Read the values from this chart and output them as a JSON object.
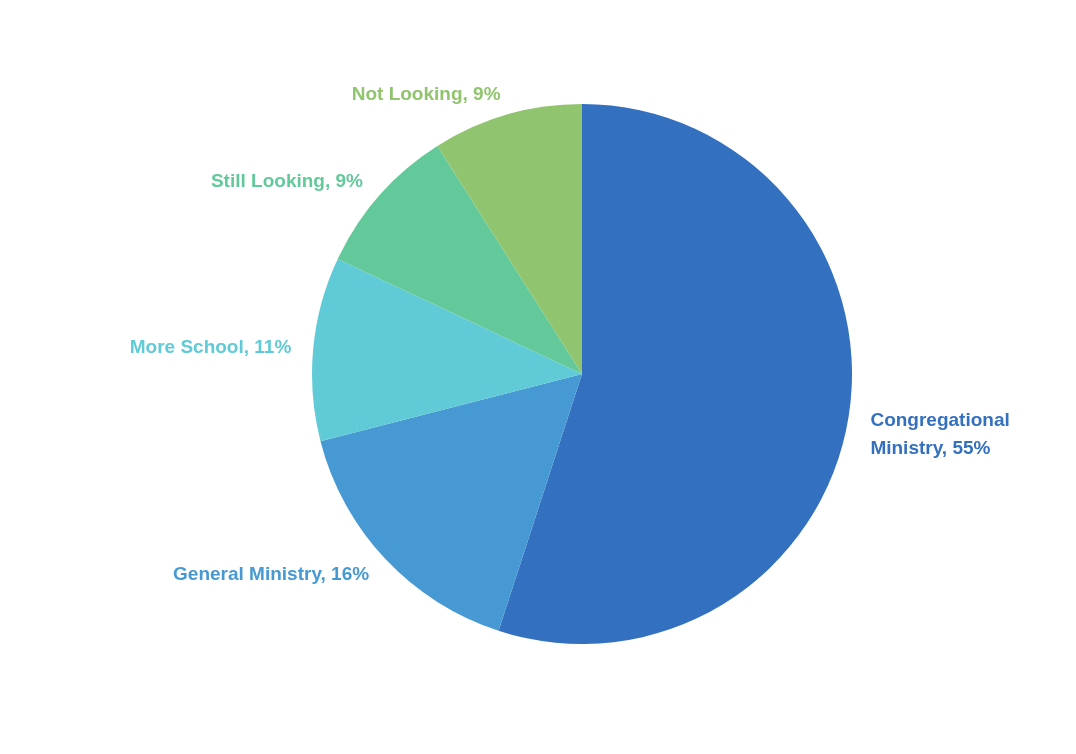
{
  "chart_data": {
    "type": "pie",
    "categories": [
      "Congregational Ministry",
      "General Ministry",
      "More School",
      "Still Looking",
      "Not Looking"
    ],
    "values": [
      55,
      16,
      11,
      9,
      9
    ],
    "value_labels": [
      "55%",
      "16%",
      "11%",
      "9%",
      "9%"
    ],
    "colors": [
      "#3470c0",
      "#4699d3",
      "#60cbd6",
      "#63c99a",
      "#90c46e"
    ]
  }
}
